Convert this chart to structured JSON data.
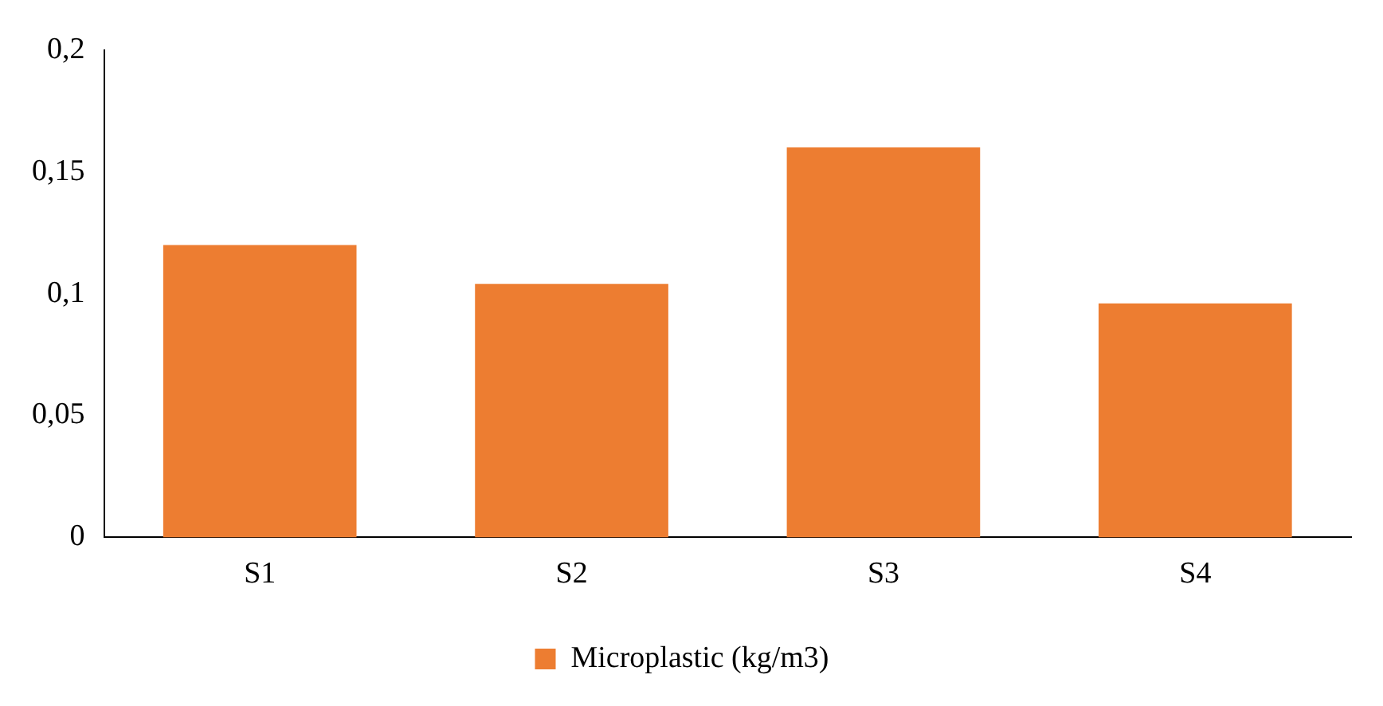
{
  "chart_data": {
    "type": "bar",
    "categories": [
      "S1",
      "S2",
      "S3",
      "S4"
    ],
    "series": [
      {
        "name": "Microplastic (kg/m3)",
        "color": "#ed7d31",
        "values": [
          0.12,
          0.104,
          0.16,
          0.096
        ]
      }
    ],
    "ylim": [
      0,
      0.2
    ],
    "yticks": [
      {
        "value": 0,
        "label": "0"
      },
      {
        "value": 0.05,
        "label": "0,05"
      },
      {
        "value": 0.1,
        "label": "0,1"
      },
      {
        "value": 0.15,
        "label": "0,15"
      },
      {
        "value": 0.2,
        "label": "0,2"
      }
    ],
    "grid": false,
    "legend": "bottom"
  }
}
